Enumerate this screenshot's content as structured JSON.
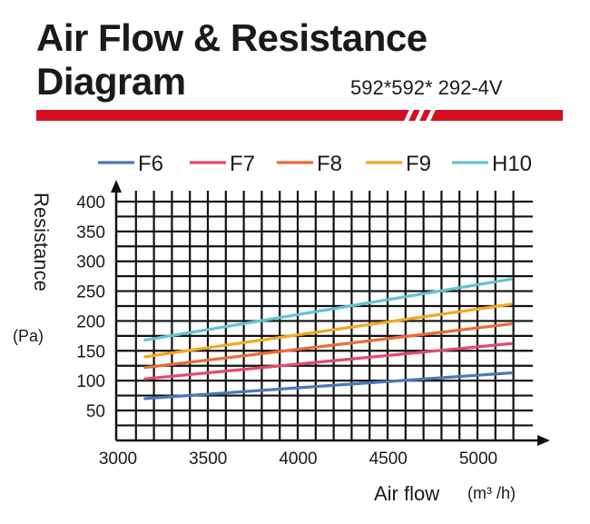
{
  "header": {
    "title_line1": "Air Flow & Resistance",
    "title_line2": "Diagram",
    "model": "592*592* 292-4V",
    "accent_color": "#d4101e"
  },
  "chart_data": {
    "type": "line",
    "title": "Air Flow & Resistance Diagram",
    "xlabel": "Air flow",
    "xunit": "(m³ /h)",
    "ylabel": "Resistance",
    "yunit": "(Pa)",
    "xlim": [
      3000,
      5200
    ],
    "ylim": [
      0,
      400
    ],
    "xticks": [
      3000,
      3500,
      4000,
      4500,
      5000
    ],
    "yticks": [
      50,
      100,
      150,
      200,
      250,
      300,
      350,
      400
    ],
    "grid": true,
    "legend_position": "top",
    "series": [
      {
        "name": "F6",
        "color": "#4a78b5",
        "x": [
          3150,
          5180
        ],
        "y": [
          70,
          113
        ]
      },
      {
        "name": "F7",
        "color": "#e04a6e",
        "x": [
          3150,
          5180
        ],
        "y": [
          103,
          162
        ]
      },
      {
        "name": "F8",
        "color": "#ec6a38",
        "x": [
          3150,
          5180
        ],
        "y": [
          122,
          195
        ]
      },
      {
        "name": "F9",
        "color": "#f2a81d",
        "x": [
          3150,
          5180
        ],
        "y": [
          140,
          228
        ]
      },
      {
        "name": "H10",
        "color": "#63c3cf",
        "x": [
          3150,
          5180
        ],
        "y": [
          168,
          270
        ]
      }
    ]
  }
}
